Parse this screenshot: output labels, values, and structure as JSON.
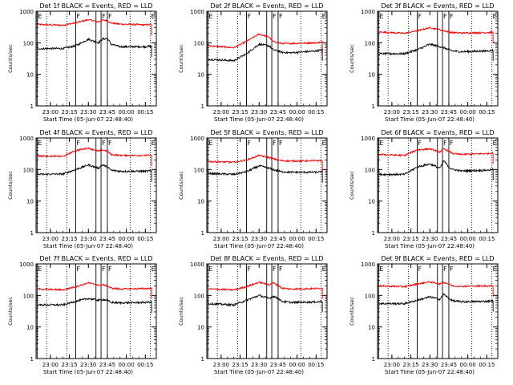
{
  "chart_data": {
    "type": "line",
    "yscale": "log",
    "ylim": [
      1,
      1000
    ],
    "y_ticks": [
      "1",
      "10",
      "100",
      "1000"
    ],
    "ylabel": "Counts/sec",
    "x_ticks": [
      "23:00",
      "23:15",
      "23:30",
      "23:45",
      "00:00",
      "00:15"
    ],
    "xlabel": "Start Time (05-Jun-07 22:48:40)",
    "series_colors": {
      "events": "#000000",
      "lld": "#ff0000"
    },
    "marker_labels": {
      "E": "E",
      "F": "F"
    },
    "panels": [
      {
        "title": "Det 1f BLACK = Events, RED = LLD",
        "events": [
          {
            "t": "22:50",
            "v": 65
          },
          {
            "t": "23:10",
            "v": 66
          },
          {
            "t": "23:20",
            "v": 80
          },
          {
            "t": "23:30",
            "v": 130
          },
          {
            "t": "23:38",
            "v": 100
          },
          {
            "t": "23:41",
            "v": 130
          },
          {
            "t": "23:45",
            "v": 140
          },
          {
            "t": "23:48",
            "v": 90
          },
          {
            "t": "23:55",
            "v": 75
          },
          {
            "t": "00:15",
            "v": 75
          },
          {
            "t": "00:20",
            "v": 78
          }
        ],
        "lld": [
          {
            "t": "22:50",
            "v": 380
          },
          {
            "t": "23:10",
            "v": 360
          },
          {
            "t": "23:20",
            "v": 430
          },
          {
            "t": "23:30",
            "v": 540
          },
          {
            "t": "23:38",
            "v": 460
          },
          {
            "t": "23:41",
            "v": 520
          },
          {
            "t": "23:45",
            "v": 500
          },
          {
            "t": "23:48",
            "v": 420
          },
          {
            "t": "23:55",
            "v": 390
          },
          {
            "t": "00:15",
            "v": 370
          },
          {
            "t": "00:20",
            "v": 380
          }
        ]
      },
      {
        "title": "Det 2f BLACK = Events, RED = LLD",
        "events": [
          {
            "t": "22:50",
            "v": 30
          },
          {
            "t": "23:10",
            "v": 27
          },
          {
            "t": "23:20",
            "v": 45
          },
          {
            "t": "23:30",
            "v": 90
          },
          {
            "t": "23:38",
            "v": 80
          },
          {
            "t": "23:41",
            "v": 60
          },
          {
            "t": "23:45",
            "v": 55
          },
          {
            "t": "23:48",
            "v": 50
          },
          {
            "t": "23:55",
            "v": 48
          },
          {
            "t": "00:15",
            "v": 55
          },
          {
            "t": "00:20",
            "v": 60
          }
        ],
        "lld": [
          {
            "t": "22:50",
            "v": 80
          },
          {
            "t": "23:10",
            "v": 70
          },
          {
            "t": "23:20",
            "v": 110
          },
          {
            "t": "23:30",
            "v": 190
          },
          {
            "t": "23:38",
            "v": 150
          },
          {
            "t": "23:41",
            "v": 110
          },
          {
            "t": "23:45",
            "v": 100
          },
          {
            "t": "23:48",
            "v": 95
          },
          {
            "t": "23:55",
            "v": 95
          },
          {
            "t": "00:15",
            "v": 100
          },
          {
            "t": "00:20",
            "v": 105
          }
        ]
      },
      {
        "title": "Det 3f BLACK = Events, RED = LLD",
        "events": [
          {
            "t": "22:50",
            "v": 45
          },
          {
            "t": "23:10",
            "v": 45
          },
          {
            "t": "23:20",
            "v": 60
          },
          {
            "t": "23:30",
            "v": 90
          },
          {
            "t": "23:38",
            "v": 75
          },
          {
            "t": "23:41",
            "v": 70
          },
          {
            "t": "23:45",
            "v": 60
          },
          {
            "t": "23:48",
            "v": 55
          },
          {
            "t": "23:55",
            "v": 52
          },
          {
            "t": "00:15",
            "v": 55
          },
          {
            "t": "00:20",
            "v": 58
          }
        ],
        "lld": [
          {
            "t": "22:50",
            "v": 220
          },
          {
            "t": "23:10",
            "v": 200
          },
          {
            "t": "23:20",
            "v": 240
          },
          {
            "t": "23:30",
            "v": 300
          },
          {
            "t": "23:38",
            "v": 260
          },
          {
            "t": "23:41",
            "v": 240
          },
          {
            "t": "23:45",
            "v": 220
          },
          {
            "t": "23:48",
            "v": 210
          },
          {
            "t": "23:55",
            "v": 205
          },
          {
            "t": "00:15",
            "v": 210
          },
          {
            "t": "00:20",
            "v": 215
          }
        ]
      },
      {
        "title": "Det 4f BLACK = Events, RED = LLD",
        "events": [
          {
            "t": "22:50",
            "v": 70
          },
          {
            "t": "23:10",
            "v": 72
          },
          {
            "t": "23:20",
            "v": 100
          },
          {
            "t": "23:30",
            "v": 140
          },
          {
            "t": "23:38",
            "v": 110
          },
          {
            "t": "23:41",
            "v": 140
          },
          {
            "t": "23:45",
            "v": 120
          },
          {
            "t": "23:48",
            "v": 95
          },
          {
            "t": "23:55",
            "v": 88
          },
          {
            "t": "00:15",
            "v": 88
          },
          {
            "t": "00:20",
            "v": 90
          }
        ],
        "lld": [
          {
            "t": "22:50",
            "v": 270
          },
          {
            "t": "23:10",
            "v": 260
          },
          {
            "t": "23:20",
            "v": 400
          },
          {
            "t": "23:30",
            "v": 480
          },
          {
            "t": "23:38",
            "v": 380
          },
          {
            "t": "23:41",
            "v": 420
          },
          {
            "t": "23:45",
            "v": 380
          },
          {
            "t": "23:48",
            "v": 300
          },
          {
            "t": "23:55",
            "v": 280
          },
          {
            "t": "00:15",
            "v": 280
          },
          {
            "t": "00:20",
            "v": 285
          }
        ]
      },
      {
        "title": "Det 5f BLACK = Events, RED = LLD",
        "events": [
          {
            "t": "22:50",
            "v": 75
          },
          {
            "t": "23:10",
            "v": 70
          },
          {
            "t": "23:20",
            "v": 85
          },
          {
            "t": "23:30",
            "v": 130
          },
          {
            "t": "23:38",
            "v": 110
          },
          {
            "t": "23:41",
            "v": 100
          },
          {
            "t": "23:45",
            "v": 90
          },
          {
            "t": "23:48",
            "v": 85
          },
          {
            "t": "23:55",
            "v": 82
          },
          {
            "t": "00:15",
            "v": 82
          },
          {
            "t": "00:20",
            "v": 85
          }
        ],
        "lld": [
          {
            "t": "22:50",
            "v": 180
          },
          {
            "t": "23:10",
            "v": 170
          },
          {
            "t": "23:20",
            "v": 200
          },
          {
            "t": "23:30",
            "v": 280
          },
          {
            "t": "23:38",
            "v": 240
          },
          {
            "t": "23:41",
            "v": 220
          },
          {
            "t": "23:45",
            "v": 200
          },
          {
            "t": "23:48",
            "v": 190
          },
          {
            "t": "23:55",
            "v": 185
          },
          {
            "t": "00:15",
            "v": 190
          },
          {
            "t": "00:20",
            "v": 195
          }
        ]
      },
      {
        "title": "Det 6f BLACK = Events, RED = LLD",
        "events": [
          {
            "t": "22:50",
            "v": 70
          },
          {
            "t": "23:10",
            "v": 70
          },
          {
            "t": "23:20",
            "v": 120
          },
          {
            "t": "23:30",
            "v": 150
          },
          {
            "t": "23:38",
            "v": 110
          },
          {
            "t": "23:41",
            "v": 190
          },
          {
            "t": "23:45",
            "v": 120
          },
          {
            "t": "23:48",
            "v": 100
          },
          {
            "t": "23:55",
            "v": 90
          },
          {
            "t": "00:15",
            "v": 95
          },
          {
            "t": "00:20",
            "v": 100
          }
        ],
        "lld": [
          {
            "t": "22:50",
            "v": 300
          },
          {
            "t": "23:10",
            "v": 280
          },
          {
            "t": "23:20",
            "v": 420
          },
          {
            "t": "23:30",
            "v": 450
          },
          {
            "t": "23:38",
            "v": 360
          },
          {
            "t": "23:41",
            "v": 450
          },
          {
            "t": "23:45",
            "v": 380
          },
          {
            "t": "23:48",
            "v": 320
          },
          {
            "t": "23:55",
            "v": 300
          },
          {
            "t": "00:15",
            "v": 320
          },
          {
            "t": "00:20",
            "v": 330
          }
        ]
      },
      {
        "title": "Det 7f BLACK = Events, RED = LLD",
        "events": [
          {
            "t": "22:50",
            "v": 50
          },
          {
            "t": "23:10",
            "v": 50
          },
          {
            "t": "23:20",
            "v": 65
          },
          {
            "t": "23:30",
            "v": 80
          },
          {
            "t": "23:38",
            "v": 70
          },
          {
            "t": "23:41",
            "v": 75
          },
          {
            "t": "23:45",
            "v": 70
          },
          {
            "t": "23:48",
            "v": 60
          },
          {
            "t": "23:55",
            "v": 58
          },
          {
            "t": "00:15",
            "v": 60
          },
          {
            "t": "00:20",
            "v": 62
          }
        ],
        "lld": [
          {
            "t": "22:50",
            "v": 160
          },
          {
            "t": "23:10",
            "v": 150
          },
          {
            "t": "23:20",
            "v": 190
          },
          {
            "t": "23:30",
            "v": 250
          },
          {
            "t": "23:38",
            "v": 210
          },
          {
            "t": "23:41",
            "v": 220
          },
          {
            "t": "23:45",
            "v": 200
          },
          {
            "t": "23:48",
            "v": 170
          },
          {
            "t": "23:55",
            "v": 160
          },
          {
            "t": "00:15",
            "v": 165
          },
          {
            "t": "00:20",
            "v": 170
          }
        ]
      },
      {
        "title": "Det 8f BLACK = Events, RED = LLD",
        "events": [
          {
            "t": "22:50",
            "v": 55
          },
          {
            "t": "23:10",
            "v": 50
          },
          {
            "t": "23:20",
            "v": 70
          },
          {
            "t": "23:30",
            "v": 100
          },
          {
            "t": "23:38",
            "v": 80
          },
          {
            "t": "23:41",
            "v": 95
          },
          {
            "t": "23:45",
            "v": 80
          },
          {
            "t": "23:48",
            "v": 65
          },
          {
            "t": "23:55",
            "v": 60
          },
          {
            "t": "00:15",
            "v": 62
          },
          {
            "t": "00:20",
            "v": 65
          }
        ],
        "lld": [
          {
            "t": "22:50",
            "v": 160
          },
          {
            "t": "23:10",
            "v": 150
          },
          {
            "t": "23:20",
            "v": 190
          },
          {
            "t": "23:30",
            "v": 260
          },
          {
            "t": "23:38",
            "v": 220
          },
          {
            "t": "23:41",
            "v": 250
          },
          {
            "t": "23:45",
            "v": 210
          },
          {
            "t": "23:48",
            "v": 170
          },
          {
            "t": "23:55",
            "v": 160
          },
          {
            "t": "00:15",
            "v": 165
          },
          {
            "t": "00:20",
            "v": 170
          }
        ]
      },
      {
        "title": "Det 9f BLACK = Events, RED = LLD",
        "events": [
          {
            "t": "22:50",
            "v": 55
          },
          {
            "t": "23:10",
            "v": 55
          },
          {
            "t": "23:20",
            "v": 70
          },
          {
            "t": "23:30",
            "v": 90
          },
          {
            "t": "23:38",
            "v": 75
          },
          {
            "t": "23:41",
            "v": 110
          },
          {
            "t": "23:45",
            "v": 80
          },
          {
            "t": "23:48",
            "v": 68
          },
          {
            "t": "23:55",
            "v": 63
          },
          {
            "t": "00:15",
            "v": 65
          },
          {
            "t": "00:20",
            "v": 68
          }
        ],
        "lld": [
          {
            "t": "22:50",
            "v": 200
          },
          {
            "t": "23:10",
            "v": 190
          },
          {
            "t": "23:20",
            "v": 230
          },
          {
            "t": "23:30",
            "v": 270
          },
          {
            "t": "23:38",
            "v": 230
          },
          {
            "t": "23:41",
            "v": 260
          },
          {
            "t": "23:45",
            "v": 230
          },
          {
            "t": "23:48",
            "v": 200
          },
          {
            "t": "23:55",
            "v": 195
          },
          {
            "t": "00:15",
            "v": 200
          },
          {
            "t": "00:20",
            "v": 205
          }
        ]
      }
    ],
    "markers": [
      {
        "label": "E",
        "t": "22:49:30",
        "style": "solid"
      },
      {
        "label": "",
        "t": "22:57",
        "style": "dotted"
      },
      {
        "label": "",
        "t": "23:13",
        "style": "dotted"
      },
      {
        "label": "F",
        "t": "23:20",
        "style": "solid"
      },
      {
        "label": "",
        "t": "23:36",
        "style": "solid"
      },
      {
        "label": "F",
        "t": "23:40",
        "style": "solid"
      },
      {
        "label": "F",
        "t": "23:45",
        "style": "solid"
      },
      {
        "label": "",
        "t": "00:03",
        "style": "dotted"
      },
      {
        "label": "E",
        "t": "00:19",
        "style": "dotted"
      }
    ]
  }
}
